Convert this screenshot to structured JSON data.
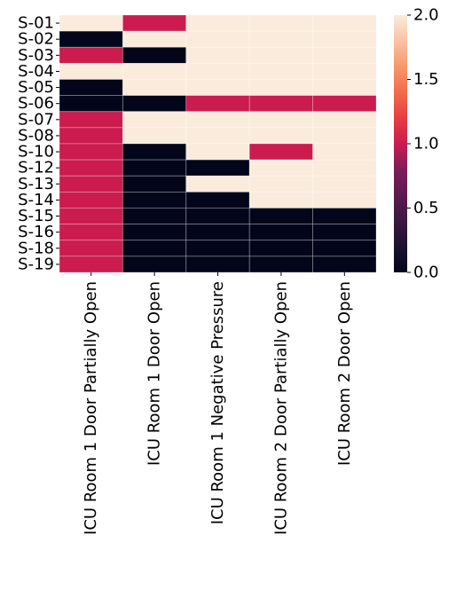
{
  "chart_data": {
    "type": "heatmap",
    "title": "",
    "xlabel": "",
    "ylabel": "",
    "columns": [
      "ICU Room 1 Door Partially Open",
      "ICU Room 1 Door Open",
      "ICU Room 1 Negative Pressure",
      "ICU Room 2 Door Partially Open",
      "ICU Room 2 Door Open"
    ],
    "rows": [
      "S-01",
      "S-02",
      "S-03",
      "S-04",
      "S-05",
      "S-06",
      "S-07",
      "S-08",
      "S-10",
      "S-12",
      "S-13",
      "S-14",
      "S-15",
      "S-16",
      "S-18",
      "S-19"
    ],
    "values": [
      [
        2,
        1,
        2,
        2,
        2
      ],
      [
        0,
        2,
        2,
        2,
        2
      ],
      [
        1,
        0,
        2,
        2,
        2
      ],
      [
        2,
        2,
        2,
        2,
        2
      ],
      [
        0,
        2,
        2,
        2,
        2
      ],
      [
        0,
        0,
        1,
        1,
        1
      ],
      [
        1,
        2,
        2,
        2,
        2
      ],
      [
        1,
        2,
        2,
        2,
        2
      ],
      [
        1,
        0,
        2,
        1,
        2
      ],
      [
        1,
        0,
        0,
        2,
        2
      ],
      [
        1,
        0,
        2,
        2,
        2
      ],
      [
        1,
        0,
        0,
        2,
        2
      ],
      [
        1,
        0,
        0,
        0,
        0
      ],
      [
        1,
        0,
        0,
        0,
        0
      ],
      [
        1,
        0,
        0,
        0,
        0
      ],
      [
        1,
        0,
        0,
        0,
        0
      ]
    ],
    "colorbar": {
      "min": 0,
      "max": 2,
      "ticks": [
        "0.0",
        "0.5",
        "1.0",
        "1.5",
        "2.0"
      ],
      "colormap": "rocket",
      "color_low": "#03051a",
      "color_mid": "#cb1b4f",
      "color_high": "#faebdd"
    }
  }
}
